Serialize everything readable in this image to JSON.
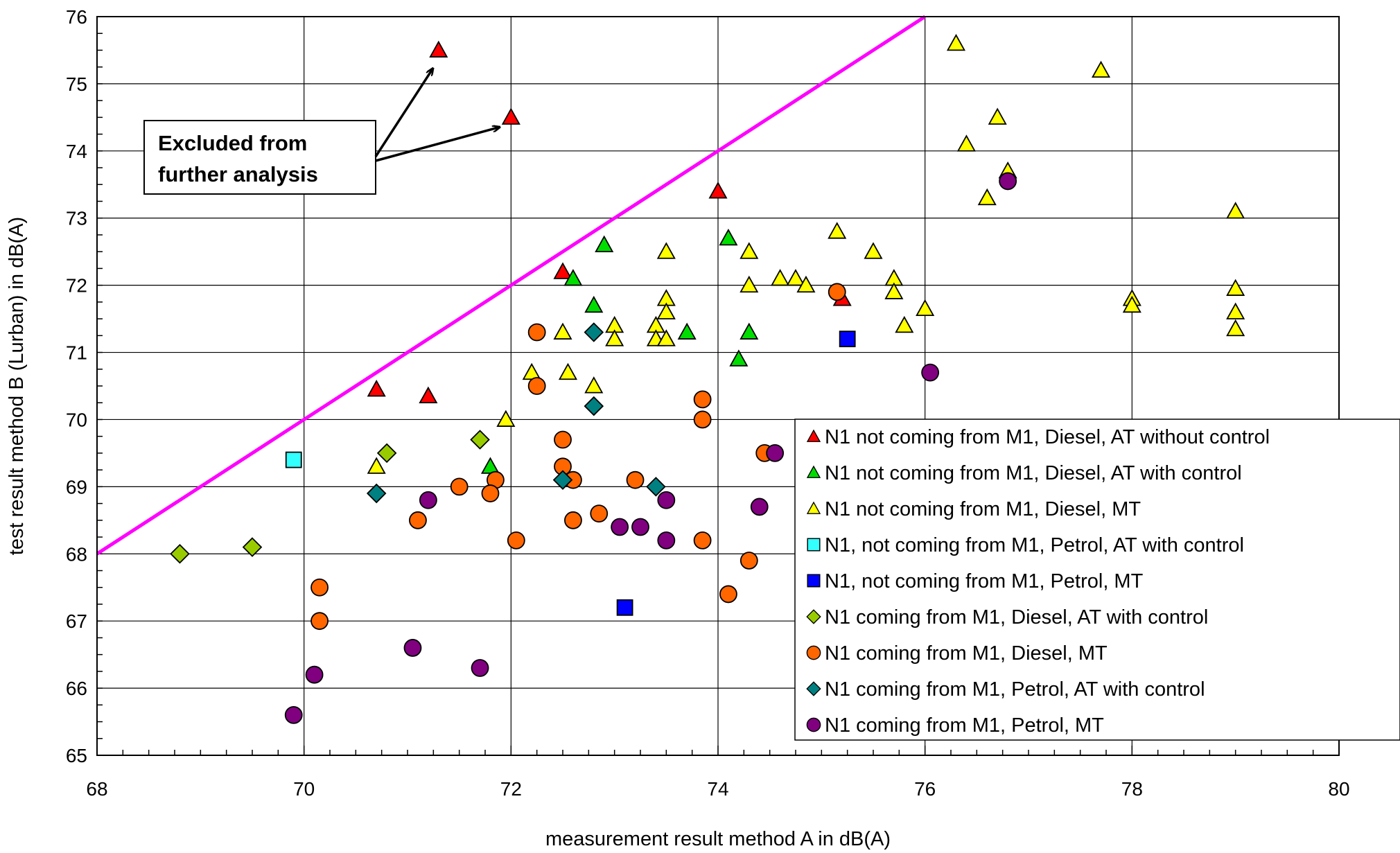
{
  "chart_data": {
    "type": "scatter",
    "title": "",
    "xlabel": "measurement result method A in dB(A)",
    "ylabel": "test result method B (Lurban) in dB(A)",
    "xlim": [
      68,
      80
    ],
    "ylim": [
      65,
      76
    ],
    "x_ticks": [
      "68",
      "70",
      "72",
      "74",
      "76",
      "78",
      "80"
    ],
    "y_ticks": [
      "65",
      "66",
      "67",
      "68",
      "69",
      "70",
      "71",
      "72",
      "73",
      "74",
      "75",
      "76"
    ],
    "grid": true,
    "legend_position": "bottom-right",
    "reference_line": {
      "points": [
        [
          68,
          68
        ],
        [
          76,
          76
        ]
      ],
      "color": "#ff00ff"
    },
    "annotation": {
      "lines": [
        "Excluded from",
        "further analysis"
      ],
      "targets": [
        [
          71.3,
          75.5
        ],
        [
          72.0,
          74.5
        ]
      ]
    },
    "series": [
      {
        "name": "N1 not coming from M1, Diesel, AT without control",
        "marker": "triangle",
        "color": "#ff0000",
        "points": [
          [
            71.3,
            75.5
          ],
          [
            72.0,
            74.5
          ],
          [
            74.0,
            73.4
          ],
          [
            72.5,
            72.2
          ],
          [
            75.2,
            71.8
          ],
          [
            70.7,
            70.45
          ],
          [
            71.2,
            70.35
          ]
        ]
      },
      {
        "name": "N1 not coming from M1, Diesel, AT with control",
        "marker": "triangle",
        "color": "#00dd00",
        "points": [
          [
            72.9,
            72.6
          ],
          [
            74.1,
            72.7
          ],
          [
            72.6,
            72.1
          ],
          [
            72.8,
            71.7
          ],
          [
            73.7,
            71.3
          ],
          [
            74.3,
            71.3
          ],
          [
            74.2,
            70.9
          ],
          [
            71.8,
            69.3
          ]
        ]
      },
      {
        "name": "N1 not coming from M1, Diesel, MT",
        "marker": "triangle",
        "color": "#ffff00",
        "points": [
          [
            76.3,
            75.6
          ],
          [
            77.7,
            75.2
          ],
          [
            76.7,
            74.5
          ],
          [
            76.4,
            74.1
          ],
          [
            76.8,
            73.7
          ],
          [
            76.6,
            73.3
          ],
          [
            79.0,
            73.1
          ],
          [
            75.15,
            72.8
          ],
          [
            73.5,
            72.5
          ],
          [
            74.3,
            72.5
          ],
          [
            75.5,
            72.5
          ],
          [
            74.6,
            72.1
          ],
          [
            74.75,
            72.1
          ],
          [
            74.85,
            72.0
          ],
          [
            74.3,
            72.0
          ],
          [
            75.7,
            72.1
          ],
          [
            75.7,
            71.9
          ],
          [
            79.0,
            71.95
          ],
          [
            73.5,
            71.8
          ],
          [
            78.0,
            71.8
          ],
          [
            78.0,
            71.7
          ],
          [
            76.0,
            71.65
          ],
          [
            79.0,
            71.6
          ],
          [
            73.5,
            71.6
          ],
          [
            73.0,
            71.4
          ],
          [
            73.4,
            71.4
          ],
          [
            75.8,
            71.4
          ],
          [
            72.5,
            71.3
          ],
          [
            79.0,
            71.35
          ],
          [
            73.0,
            71.2
          ],
          [
            73.4,
            71.2
          ],
          [
            73.5,
            71.2
          ],
          [
            72.2,
            70.7
          ],
          [
            72.55,
            70.7
          ],
          [
            72.8,
            70.5
          ],
          [
            71.95,
            70.0
          ],
          [
            70.7,
            69.3
          ]
        ]
      },
      {
        "name": "N1, not coming from M1, Petrol, AT with control",
        "marker": "square",
        "color": "#33ffff",
        "points": [
          [
            69.9,
            69.4
          ]
        ]
      },
      {
        "name": "N1, not coming from M1, Petrol, MT",
        "marker": "square",
        "color": "#0000ff",
        "points": [
          [
            75.25,
            71.2
          ],
          [
            73.1,
            67.2
          ]
        ]
      },
      {
        "name": "N1 coming from M1, Diesel, AT with control",
        "marker": "diamond",
        "color": "#99cc00",
        "points": [
          [
            70.8,
            69.5
          ],
          [
            71.7,
            69.7
          ],
          [
            68.8,
            68.0
          ],
          [
            69.5,
            68.1
          ]
        ]
      },
      {
        "name": "N1 coming from M1, Diesel, MT",
        "marker": "circle",
        "color": "#ff6600",
        "points": [
          [
            75.15,
            71.9
          ],
          [
            72.25,
            71.3
          ],
          [
            72.25,
            70.5
          ],
          [
            73.85,
            70.3
          ],
          [
            73.85,
            70.0
          ],
          [
            72.5,
            69.7
          ],
          [
            74.45,
            69.5
          ],
          [
            72.5,
            69.3
          ],
          [
            72.6,
            69.1
          ],
          [
            71.85,
            69.1
          ],
          [
            73.2,
            69.1
          ],
          [
            71.5,
            69.0
          ],
          [
            71.8,
            68.9
          ],
          [
            72.85,
            68.6
          ],
          [
            71.1,
            68.5
          ],
          [
            72.6,
            68.5
          ],
          [
            72.05,
            68.2
          ],
          [
            73.85,
            68.2
          ],
          [
            74.3,
            67.9
          ],
          [
            70.15,
            67.5
          ],
          [
            74.1,
            67.4
          ],
          [
            70.15,
            67.0
          ]
        ]
      },
      {
        "name": "N1 coming from M1, Petrol, AT with control",
        "marker": "diamond",
        "color": "#008080",
        "points": [
          [
            72.8,
            71.3
          ],
          [
            72.8,
            70.2
          ],
          [
            72.5,
            69.1
          ],
          [
            73.4,
            69.0
          ],
          [
            70.7,
            68.9
          ]
        ]
      },
      {
        "name": "N1 coming from M1, Petrol, MT",
        "marker": "circle",
        "color": "#800080",
        "points": [
          [
            76.8,
            73.55
          ],
          [
            76.05,
            70.7
          ],
          [
            74.55,
            69.5
          ],
          [
            71.2,
            68.8
          ],
          [
            73.5,
            68.8
          ],
          [
            74.4,
            68.7
          ],
          [
            73.05,
            68.4
          ],
          [
            73.25,
            68.4
          ],
          [
            73.5,
            68.2
          ],
          [
            71.05,
            66.6
          ],
          [
            71.7,
            66.3
          ],
          [
            70.1,
            66.2
          ],
          [
            69.9,
            65.6
          ]
        ]
      }
    ]
  }
}
